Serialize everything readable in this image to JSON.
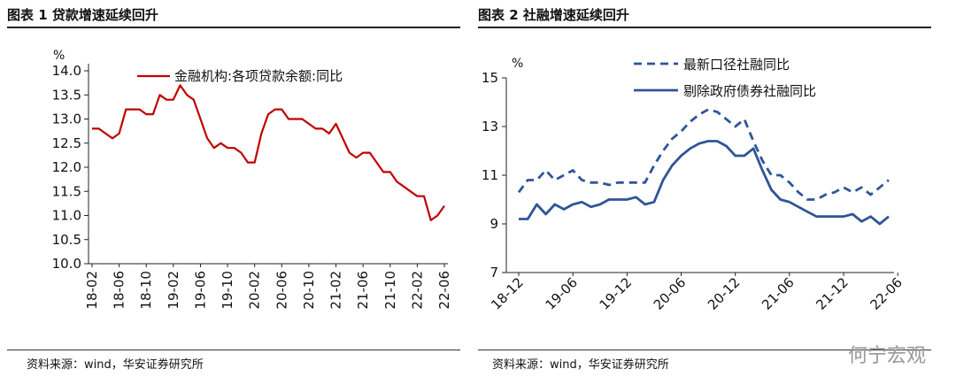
{
  "left_panel": {
    "title": "图表 1 贷款增速延续回升",
    "source": "资料来源：wind，华安证券研究所"
  },
  "right_panel": {
    "title": "图表 2 社融增速延续回升",
    "source": "资料来源：wind，华安证券研究所"
  },
  "watermark": "何宁宏观",
  "colors": {
    "loan": "#c00000",
    "sf_all": "#2f5597",
    "sf_ex": "#2f5597"
  },
  "chart_data": [
    {
      "type": "line",
      "title": "贷款增速延续回升",
      "ylabel": "%",
      "ylim": [
        10.0,
        14.0
      ],
      "yticks": [
        "14.0",
        "13.5",
        "13.0",
        "12.5",
        "12.0",
        "11.5",
        "11.0",
        "10.5",
        "10.0"
      ],
      "xticklabels": [
        "18-02",
        "18-06",
        "18-10",
        "19-02",
        "19-06",
        "19-10",
        "20-02",
        "20-06",
        "20-10",
        "21-02",
        "21-06",
        "21-10",
        "22-02",
        "22-06"
      ],
      "legend": [
        "金融机构:各项贷款余额:同比"
      ],
      "series": [
        {
          "name": "金融机构:各项贷款余额:同比",
          "values": [
            12.8,
            12.8,
            12.7,
            12.6,
            12.7,
            13.2,
            13.2,
            13.2,
            13.1,
            13.1,
            13.5,
            13.4,
            13.4,
            13.7,
            13.5,
            13.4,
            13.0,
            12.6,
            12.4,
            12.5,
            12.4,
            12.4,
            12.3,
            12.1,
            12.1,
            12.7,
            13.1,
            13.2,
            13.2,
            13.0,
            13.0,
            13.0,
            12.9,
            12.8,
            12.8,
            12.7,
            12.9,
            12.6,
            12.3,
            12.2,
            12.3,
            12.3,
            12.1,
            11.9,
            11.9,
            11.7,
            11.6,
            11.5,
            11.4,
            11.4,
            10.9,
            11.0,
            11.2
          ]
        }
      ]
    },
    {
      "type": "line",
      "title": "社融增速延续回升",
      "ylabel": "%",
      "ylim": [
        7,
        15
      ],
      "yticks": [
        "15",
        "13",
        "11",
        "9",
        "7"
      ],
      "xticklabels": [
        "18-12",
        "19-06",
        "19-12",
        "20-06",
        "20-12",
        "21-06",
        "21-12",
        "22-06"
      ],
      "legend": [
        "最新口径社融同比",
        "剔除政府债券社融同比"
      ],
      "series": [
        {
          "name": "最新口径社融同比",
          "style": "dashed",
          "values": [
            10.3,
            10.8,
            10.8,
            11.2,
            10.8,
            11.0,
            11.2,
            10.8,
            10.7,
            10.7,
            10.6,
            10.7,
            10.7,
            10.7,
            10.7,
            11.4,
            12.0,
            12.5,
            12.8,
            13.2,
            13.5,
            13.7,
            13.6,
            13.3,
            13.0,
            13.3,
            12.4,
            11.6,
            11.0,
            11.0,
            10.7,
            10.3,
            10.0,
            10.0,
            10.2,
            10.3,
            10.5,
            10.3,
            10.5,
            10.2,
            10.5,
            10.8
          ]
        },
        {
          "name": "剔除政府债券社融同比",
          "style": "solid",
          "values": [
            9.2,
            9.2,
            9.8,
            9.4,
            9.8,
            9.6,
            9.8,
            9.9,
            9.7,
            9.8,
            10.0,
            10.0,
            10.0,
            10.1,
            9.8,
            9.9,
            10.8,
            11.4,
            11.8,
            12.1,
            12.3,
            12.4,
            12.4,
            12.2,
            11.8,
            11.8,
            12.1,
            11.2,
            10.4,
            10.0,
            9.9,
            9.7,
            9.5,
            9.3,
            9.3,
            9.3,
            9.3,
            9.4,
            9.1,
            9.3,
            9.0,
            9.3
          ]
        }
      ]
    }
  ]
}
